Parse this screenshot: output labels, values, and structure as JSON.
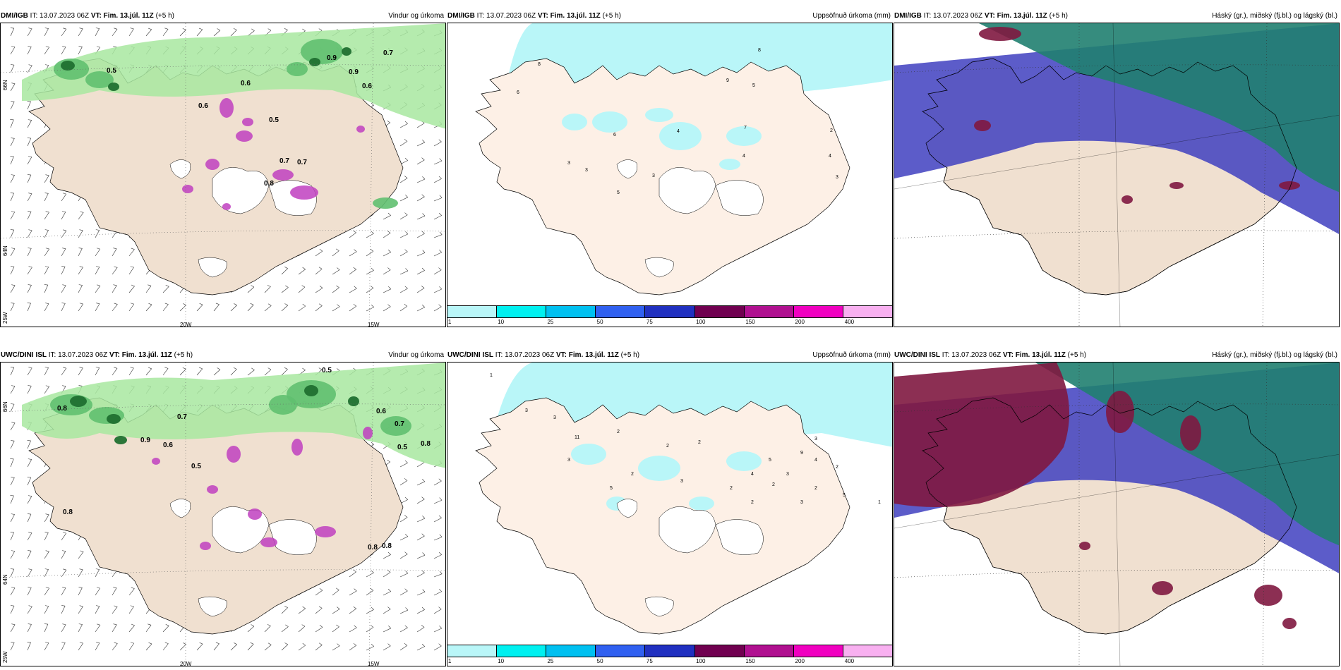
{
  "panels": [
    {
      "model": "DMI/IGB",
      "it_label": "IT:",
      "it": "13.07.2023 06Z",
      "vt_label": "VT:",
      "vt": "Fim. 13.júl. 11Z",
      "lead": "(+5 h)",
      "product": "Vindur og úrkoma"
    },
    {
      "model": "DMI/IGB",
      "it_label": "IT:",
      "it": "13.07.2023 06Z",
      "vt_label": "VT:",
      "vt": "Fim. 13.júl. 11Z",
      "lead": "(+5 h)",
      "product": "Uppsöfnuð úrkoma (mm)"
    },
    {
      "model": "DMI/IGB",
      "it_label": "IT:",
      "it": "13.07.2023 06Z",
      "vt_label": "VT:",
      "vt": "Fim. 13.júl. 11Z",
      "lead": "(+5 h)",
      "product": "Háský (gr.), miðský (fj.bl.) og lágský (bl.)"
    },
    {
      "model": "UWC/DINI ISL",
      "it_label": "IT:",
      "it": "13.07.2023 06Z",
      "vt_label": "VT:",
      "vt": "Fim. 13.júl. 11Z",
      "lead": "(+5 h)",
      "product": "Vindur og úrkoma"
    },
    {
      "model": "UWC/DINI ISL",
      "it_label": "IT:",
      "it": "13.07.2023 06Z",
      "vt_label": "VT:",
      "vt": "Fim. 13.júl. 11Z",
      "lead": "(+5 h)",
      "product": "Uppsöfnuð úrkoma (mm)"
    },
    {
      "model": "UWC/DINI ISL",
      "it_label": "IT:",
      "it": "13.07.2023 06Z",
      "vt_label": "VT:",
      "vt": "Fim. 13.júl. 11Z",
      "lead": "(+5 h)",
      "product": "Háský (gr.), miðský (fj.bl.) og lágský (bl.)"
    }
  ],
  "axes": {
    "lat_top": "66N",
    "lat_mid": "64N",
    "lon_left": "25W",
    "lon_20": "20W",
    "lon_15": "15W"
  },
  "colorbar": {
    "labels": [
      "1",
      "10",
      "25",
      "50",
      "75",
      "100",
      "150",
      "200",
      "400"
    ],
    "colors": [
      "#b9f6f8",
      "#00f0f0",
      "#00c0f0",
      "#3060f0",
      "#2030c0",
      "#700050",
      "#b01090",
      "#f000c0",
      "#f8b0f0"
    ]
  },
  "colors": {
    "land": "#f0e0d0",
    "land_precip": "#fdf0e6",
    "sea": "#ffffff",
    "light_precip": "#b9f6f8",
    "green_light": "#a8e8a0",
    "green_mid": "#60c070",
    "green_dark": "#207030",
    "magenta": "#c040c0",
    "cloud_high": "#208070",
    "cloud_mid": "#4040c0",
    "cloud_low": "#801840"
  },
  "wind_labels_top": [
    "0.9",
    "0.7",
    "0.5",
    "0.6",
    "0.7",
    "0.6",
    "0.5",
    "0.7",
    "0.8",
    "0.9",
    "0.6"
  ],
  "wind_labels_bottom": [
    "0.5",
    "0.9",
    "0.8",
    "0.6",
    "0.7",
    "0.5",
    "0.8",
    "0.8",
    "0.8",
    "0.5",
    "0.8",
    "0.6",
    "0.7"
  ],
  "precip_labels_top": [
    "8",
    "6",
    "9",
    "5",
    "6",
    "4",
    "7",
    "4",
    "3",
    "3",
    "5",
    "3",
    "2",
    "4",
    "3",
    "8"
  ],
  "precip_labels_bottom": [
    "1",
    "2",
    "3",
    "2",
    "5",
    "11",
    "3",
    "3",
    "2",
    "2",
    "3",
    "4",
    "5",
    "9",
    "2",
    "3",
    "2",
    "5",
    "1",
    "3",
    "2",
    "4",
    "3",
    "2",
    "2"
  ]
}
